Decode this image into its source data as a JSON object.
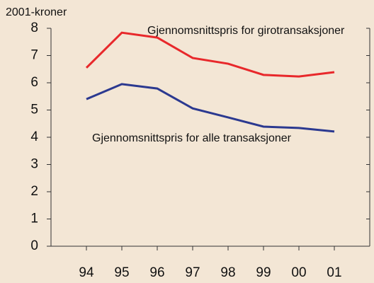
{
  "chart_data": {
    "type": "line",
    "y_label": "2001-kroner",
    "categories": [
      "94",
      "95",
      "96",
      "97",
      "98",
      "99",
      "00",
      "01"
    ],
    "series": [
      {
        "name": "Gjennomsnittspris for girotransaksjoner",
        "color": "#e8282b",
        "values": [
          6.55,
          7.84,
          7.66,
          6.91,
          6.7,
          6.29,
          6.23,
          6.39
        ]
      },
      {
        "name": "Gjennomsnittspris for alle transaksjoner",
        "color": "#2b3990",
        "values": [
          5.4,
          5.95,
          5.79,
          5.06,
          4.73,
          4.39,
          4.34,
          4.21
        ]
      }
    ],
    "ylim": [
      0,
      8
    ],
    "yticks": [
      0,
      1,
      2,
      3,
      4,
      5,
      6,
      7,
      8
    ],
    "grid": false
  }
}
